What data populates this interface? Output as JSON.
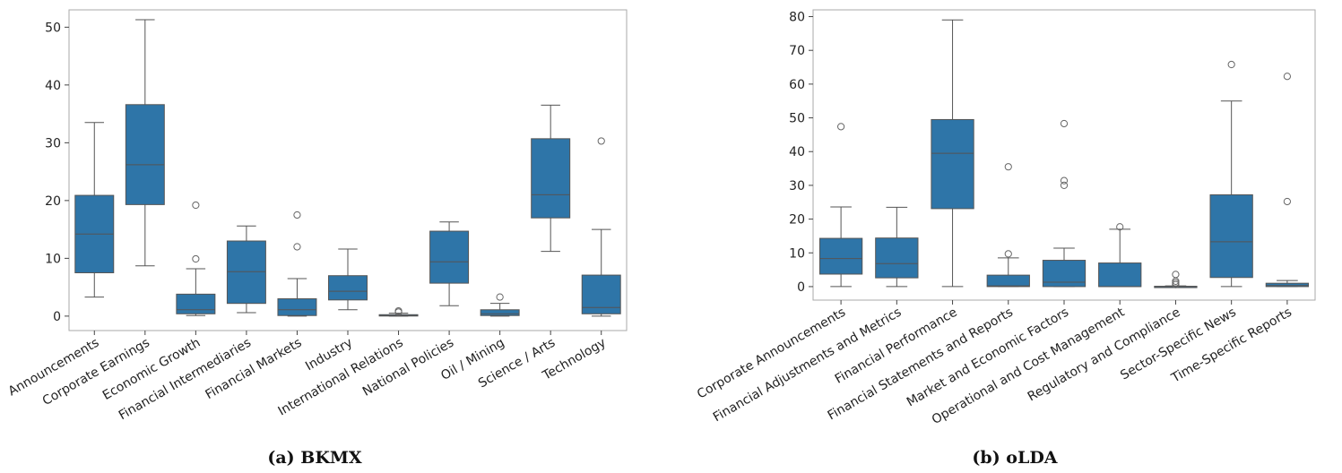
{
  "colors": {
    "box_fill": "#2e75a8",
    "line": "#555555",
    "frame": "#aaaaaa"
  },
  "chart_data": [
    {
      "type": "box",
      "caption": "(a) BKMX",
      "ylim": [
        -2.5,
        53
      ],
      "yticks": [
        0,
        10,
        20,
        30,
        40,
        50
      ],
      "categories": [
        "Announcements",
        "Corporate Earnings",
        "Economic Growth",
        "Financial Intermediaries",
        "Financial Markets",
        "Industry",
        "International Relations",
        "National Policies",
        "Oil / Mining",
        "Science / Arts",
        "Technology"
      ],
      "boxes": [
        {
          "whislo": 3.3,
          "q1": 7.5,
          "med": 14.2,
          "q3": 20.9,
          "whishi": 33.5,
          "fliers": []
        },
        {
          "whislo": 8.7,
          "q1": 19.3,
          "med": 26.2,
          "q3": 36.6,
          "whishi": 51.3,
          "fliers": []
        },
        {
          "whislo": 0.1,
          "q1": 0.4,
          "med": 1.1,
          "q3": 3.8,
          "whishi": 8.2,
          "fliers": [
            9.9,
            19.2
          ]
        },
        {
          "whislo": 0.6,
          "q1": 2.2,
          "med": 7.7,
          "q3": 13.0,
          "whishi": 15.6,
          "fliers": []
        },
        {
          "whislo": 0.0,
          "q1": 0.1,
          "med": 1.1,
          "q3": 3.0,
          "whishi": 6.5,
          "fliers": [
            12.0,
            17.5
          ]
        },
        {
          "whislo": 1.1,
          "q1": 2.8,
          "med": 4.3,
          "q3": 7.0,
          "whishi": 11.6,
          "fliers": []
        },
        {
          "whislo": 0.0,
          "q1": 0.05,
          "med": 0.1,
          "q3": 0.25,
          "whishi": 0.5,
          "fliers": [
            0.7,
            0.9
          ]
        },
        {
          "whislo": 1.8,
          "q1": 5.7,
          "med": 9.4,
          "q3": 14.7,
          "whishi": 16.3,
          "fliers": []
        },
        {
          "whislo": 0.0,
          "q1": 0.1,
          "med": 0.4,
          "q3": 1.1,
          "whishi": 2.2,
          "fliers": [
            3.3
          ]
        },
        {
          "whislo": 11.2,
          "q1": 17.0,
          "med": 21.0,
          "q3": 30.7,
          "whishi": 36.5,
          "fliers": []
        },
        {
          "whislo": 0.0,
          "q1": 0.4,
          "med": 1.5,
          "q3": 7.1,
          "whishi": 15.0,
          "fliers": [
            30.3
          ]
        }
      ]
    },
    {
      "type": "box",
      "caption": "(b) oLDA",
      "ylim": [
        -4,
        82
      ],
      "yticks": [
        0,
        10,
        20,
        30,
        40,
        50,
        60,
        70,
        80
      ],
      "categories": [
        "Corporate Announcements",
        "Financial Adjustments and Metrics",
        "Financial Performance",
        "Financial Statements and Reports",
        "Market and Economic Factors",
        "Operational and Cost Management",
        "Regulatory and Compliance",
        "Sector-Specific News",
        "Time-Specific Reports"
      ],
      "boxes": [
        {
          "whislo": 0.0,
          "q1": 3.7,
          "med": 8.3,
          "q3": 14.3,
          "whishi": 23.6,
          "fliers": [
            47.4
          ]
        },
        {
          "whislo": 0.0,
          "q1": 2.6,
          "med": 6.8,
          "q3": 14.4,
          "whishi": 23.5,
          "fliers": []
        },
        {
          "whislo": 0.0,
          "q1": 23.1,
          "med": 39.5,
          "q3": 49.5,
          "whishi": 79.0,
          "fliers": []
        },
        {
          "whislo": 0.0,
          "q1": 0.0,
          "med": 0.2,
          "q3": 3.4,
          "whishi": 8.5,
          "fliers": [
            9.7,
            35.5
          ]
        },
        {
          "whislo": 0.0,
          "q1": 0.0,
          "med": 1.3,
          "q3": 7.8,
          "whishi": 11.4,
          "fliers": [
            30.0,
            31.4,
            48.3
          ]
        },
        {
          "whislo": 0.0,
          "q1": 0.0,
          "med": 0.0,
          "q3": 7.0,
          "whishi": 17.0,
          "fliers": [
            17.7
          ]
        },
        {
          "whislo": 0.0,
          "q1": 0.0,
          "med": 0.0,
          "q3": 0.1,
          "whishi": 0.2,
          "fliers": [
            0.6,
            1.1,
            1.6,
            3.6
          ]
        },
        {
          "whislo": 0.0,
          "q1": 2.7,
          "med": 13.3,
          "q3": 27.2,
          "whishi": 55.0,
          "fliers": [
            65.8
          ]
        },
        {
          "whislo": 0.0,
          "q1": 0.0,
          "med": 0.3,
          "q3": 1.0,
          "whishi": 1.8,
          "fliers": [
            25.2,
            62.3
          ]
        }
      ]
    }
  ]
}
